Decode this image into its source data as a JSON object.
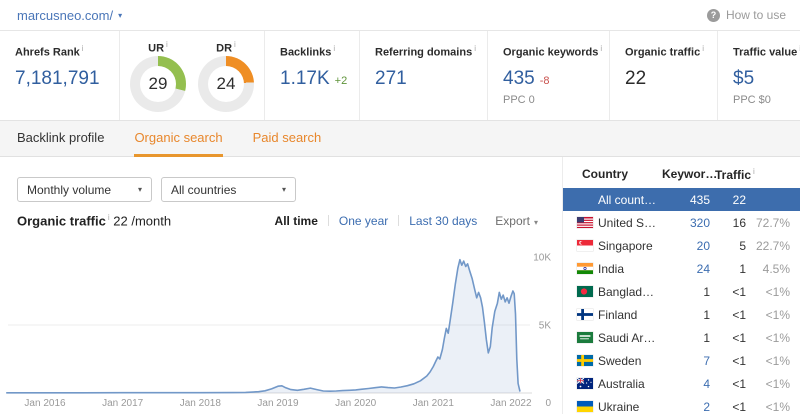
{
  "header": {
    "domain": "marcusneo.com/",
    "how_to_use": "How to use"
  },
  "stats": {
    "ahrefs_rank": {
      "label": "Ahrefs Rank",
      "value": "7,181,791"
    },
    "ur": {
      "label": "UR",
      "value": "29",
      "percent": 29
    },
    "dr": {
      "label": "DR",
      "value": "24",
      "percent": 24
    },
    "backlinks": {
      "label": "Backlinks",
      "value": "1.17K",
      "delta": "+2"
    },
    "referring_domains": {
      "label": "Referring domains",
      "value": "271"
    },
    "organic_keywords": {
      "label": "Organic keywords",
      "value": "435",
      "delta": "-8",
      "sub": "PPC 0"
    },
    "organic_traffic": {
      "label": "Organic traffic",
      "value": "22"
    },
    "traffic_value": {
      "label": "Traffic value",
      "value": "$5",
      "sub": "PPC $0"
    }
  },
  "tabs": [
    {
      "label": "Backlink profile",
      "active": false,
      "style": "plain"
    },
    {
      "label": "Organic search",
      "active": true,
      "style": "orange"
    },
    {
      "label": "Paid search",
      "active": false,
      "style": "orange"
    }
  ],
  "filters": {
    "volume": "Monthly volume",
    "countries": "All countries"
  },
  "chart_header": {
    "title": "Organic traffic",
    "value": "22 /month",
    "ranges": [
      "All time",
      "One year",
      "Last 30 days"
    ],
    "active_range": "All time",
    "export_label": "Export"
  },
  "chart_data": {
    "type": "area",
    "title": "Organic traffic over time",
    "legend": "none",
    "grid": "horizontal-5K",
    "x_axis": {
      "tick_labels": [
        "Jan 2016",
        "Jan 2017",
        "Jan 2018",
        "Jan 2019",
        "Jan 2020",
        "Jan 2021",
        "Jan 2022"
      ],
      "tick_offsets_months": [
        0,
        12,
        24,
        36,
        48,
        60,
        72
      ]
    },
    "y_axis": {
      "side": "right",
      "tick_values": [
        0,
        5000,
        10000
      ],
      "tick_labels": [
        "0",
        "5K",
        "10K"
      ],
      "range": [
        0,
        10000
      ]
    },
    "series": [
      {
        "name": "Organic traffic (monthly)",
        "points_format": "[months_since_jan2016, traffic]",
        "points": [
          [
            -6,
            15
          ],
          [
            0,
            15
          ],
          [
            6,
            18
          ],
          [
            12,
            20
          ],
          [
            18,
            22
          ],
          [
            24,
            24
          ],
          [
            29,
            26
          ],
          [
            31,
            45
          ],
          [
            33,
            95
          ],
          [
            34,
            160
          ],
          [
            35,
            300
          ],
          [
            36,
            500
          ],
          [
            36.6,
            530
          ],
          [
            37.2,
            380
          ],
          [
            38,
            250
          ],
          [
            39,
            200
          ],
          [
            40,
            270
          ],
          [
            41,
            360
          ],
          [
            42,
            250
          ],
          [
            43,
            150
          ],
          [
            44,
            130
          ],
          [
            45,
            150
          ],
          [
            46,
            180
          ],
          [
            47,
            200
          ],
          [
            48,
            230
          ],
          [
            49,
            280
          ],
          [
            50,
            330
          ],
          [
            51,
            390
          ],
          [
            52,
            450
          ],
          [
            53,
            400
          ],
          [
            54,
            370
          ],
          [
            55,
            440
          ],
          [
            56,
            540
          ],
          [
            57,
            680
          ],
          [
            58,
            900
          ],
          [
            59,
            1250
          ],
          [
            59.5,
            1550
          ],
          [
            60,
            1950
          ],
          [
            60.4,
            2350
          ],
          [
            60.7,
            2650
          ],
          [
            61,
            2500
          ],
          [
            61.4,
            3200
          ],
          [
            61.7,
            4000
          ],
          [
            62,
            4750
          ],
          [
            62.3,
            4400
          ],
          [
            62.6,
            5300
          ],
          [
            63,
            6600
          ],
          [
            63.4,
            8000
          ],
          [
            63.8,
            9200
          ],
          [
            64.1,
            9800
          ],
          [
            64.4,
            9400
          ],
          [
            64.7,
            9700
          ],
          [
            65,
            9300
          ],
          [
            65.3,
            9500
          ],
          [
            65.6,
            9000
          ],
          [
            66,
            8400
          ],
          [
            66.4,
            7600
          ],
          [
            66.7,
            7000
          ],
          [
            67,
            7400
          ],
          [
            67.3,
            7000
          ],
          [
            67.6,
            6300
          ],
          [
            67.9,
            5200
          ],
          [
            68.2,
            3900
          ],
          [
            68.5,
            2950
          ],
          [
            68.8,
            3400
          ],
          [
            69.1,
            4800
          ],
          [
            69.5,
            6000
          ],
          [
            69.9,
            6600
          ],
          [
            70.2,
            7400
          ],
          [
            70.5,
            6900
          ],
          [
            70.8,
            7200
          ],
          [
            71.1,
            6700
          ],
          [
            71.4,
            7000
          ],
          [
            71.7,
            6600
          ],
          [
            72,
            7100
          ],
          [
            72.3,
            7500
          ],
          [
            72.5,
            7300
          ],
          [
            72.7,
            5800
          ],
          [
            72.9,
            2500
          ],
          [
            73.1,
            700
          ],
          [
            73.4,
            100
          ]
        ]
      }
    ]
  },
  "table": {
    "columns": [
      "Country",
      "Keywor…",
      "Traffic"
    ],
    "rows": [
      {
        "country": "All count…",
        "flag": null,
        "keywords": "435",
        "traffic": "22",
        "percent": "",
        "selected": true,
        "kw_link": false
      },
      {
        "country": "United S…",
        "flag": "us",
        "keywords": "320",
        "traffic": "16",
        "percent": "72.7%",
        "kw_link": true
      },
      {
        "country": "Singapore",
        "flag": "sg",
        "keywords": "20",
        "traffic": "5",
        "percent": "22.7%",
        "kw_link": true
      },
      {
        "country": "India",
        "flag": "in",
        "keywords": "24",
        "traffic": "1",
        "percent": "4.5%",
        "kw_link": true
      },
      {
        "country": "Banglad…",
        "flag": "bd",
        "keywords": "1",
        "traffic": "<1",
        "percent": "<1%",
        "kw_link": false
      },
      {
        "country": "Finland",
        "flag": "fi",
        "keywords": "1",
        "traffic": "<1",
        "percent": "<1%",
        "kw_link": false
      },
      {
        "country": "Saudi Ar…",
        "flag": "sa",
        "keywords": "1",
        "traffic": "<1",
        "percent": "<1%",
        "kw_link": false
      },
      {
        "country": "Sweden",
        "flag": "se",
        "keywords": "7",
        "traffic": "<1",
        "percent": "<1%",
        "kw_link": true
      },
      {
        "country": "Australia",
        "flag": "au",
        "keywords": "4",
        "traffic": "<1",
        "percent": "<1%",
        "kw_link": true
      },
      {
        "country": "Ukraine",
        "flag": "ua",
        "keywords": "2",
        "traffic": "<1",
        "percent": "<1%",
        "kw_link": true
      }
    ]
  },
  "colors": {
    "accent_orange": "#e8872c",
    "link_blue": "#3c6db0",
    "value_blue": "#315f9f",
    "donut_green": "#94bf4f",
    "donut_orange": "#ef8e24",
    "donut_track": "#eaeaea",
    "delta_green": "#5e9339",
    "delta_red": "#c9524e",
    "selected_row_blue": "#3d6dad",
    "chart_line": "#7298c8",
    "chart_fill": "rgba(114,152,200,0.14)",
    "axis_text": "#9a9a9a"
  }
}
